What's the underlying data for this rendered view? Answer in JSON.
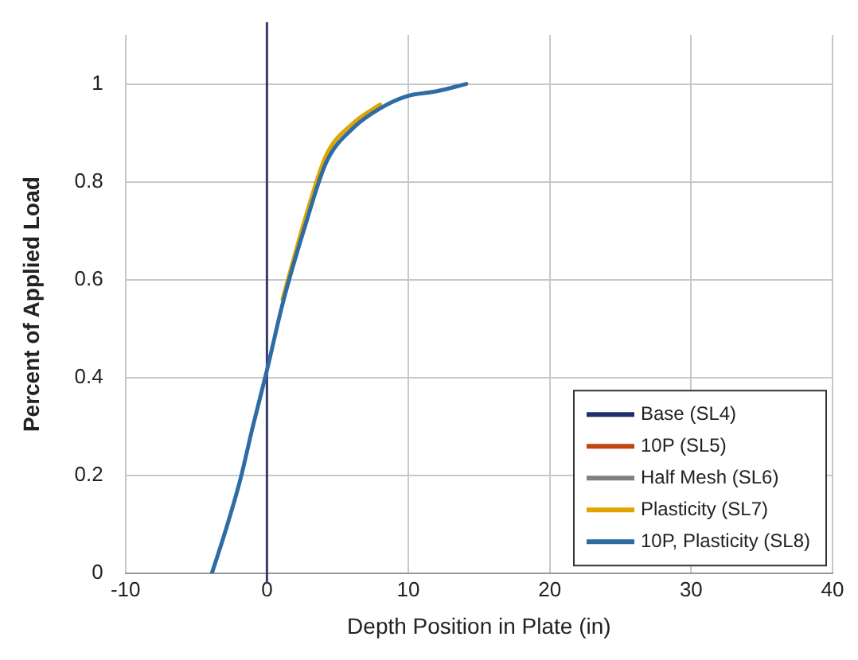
{
  "chart_data": {
    "type": "line",
    "xlabel": "Depth Position in Plate (in)",
    "ylabel": "Percent of Applied Load",
    "x": [
      -3.9,
      -2.9,
      -1.9,
      -1,
      0,
      1.1,
      2.7,
      4.2,
      6.1,
      8,
      9.9,
      12,
      14.1
    ],
    "series": [
      {
        "name": "Base (SL4)",
        "color": "#1f2f6b",
        "values": [
          null,
          null,
          null,
          null,
          null,
          null,
          null,
          null,
          null,
          null,
          null,
          null,
          null
        ]
      },
      {
        "name": "10P (SL5)",
        "color": "#c0450f",
        "values": [
          null,
          null,
          null,
          null,
          null,
          null,
          null,
          null,
          null,
          null,
          null,
          null,
          null
        ]
      },
      {
        "name": "Half Mesh (SL6)",
        "color": "#808080",
        "values": [
          null,
          null,
          null,
          null,
          null,
          null,
          null,
          null,
          null,
          null,
          null,
          null,
          null
        ]
      },
      {
        "name": "Plasticity (SL7)",
        "color": "#e2a400",
        "values": [
          null,
          null,
          null,
          null,
          null,
          0.56,
          0.725,
          0.855,
          0.92,
          0.958,
          null,
          null,
          null
        ]
      },
      {
        "name": "10P, Plasticity (SL8)",
        "color": "#2e6ca4",
        "values": [
          0,
          0.09,
          0.19,
          0.3,
          0.415,
          0.55,
          0.71,
          0.84,
          0.91,
          0.95,
          0.975,
          0.985,
          1
        ]
      }
    ],
    "xlim": [
      -10,
      40
    ],
    "xticks": [
      -10,
      0,
      10,
      20,
      30,
      40
    ],
    "ylim": [
      0,
      1.1
    ],
    "yticks": [
      0,
      0.2,
      0.4,
      0.6,
      0.8,
      1
    ],
    "ref_lines": [
      {
        "axis": "x",
        "value": 0,
        "color": "#3a3a6e"
      }
    ],
    "grid": true,
    "legend": "bottom right",
    "marker": "none",
    "line_style": "solid"
  }
}
